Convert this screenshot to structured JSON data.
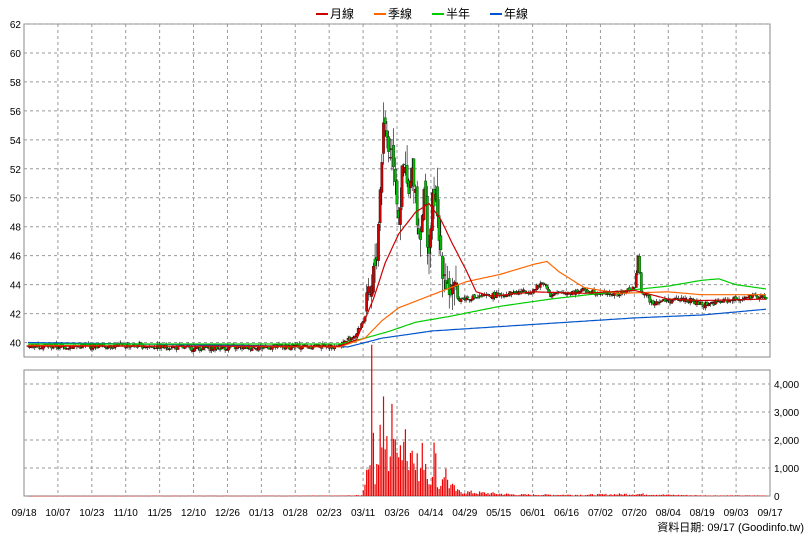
{
  "chart_data": {
    "type": "candlestick",
    "legend": [
      {
        "name": "月線",
        "color": "#cc0000"
      },
      {
        "name": "季線",
        "color": "#ff6600"
      },
      {
        "name": "半年",
        "color": "#00cc00"
      },
      {
        "name": "年線",
        "color": "#0055cc"
      }
    ],
    "x_ticks": [
      "09/18",
      "10/07",
      "10/23",
      "11/10",
      "11/25",
      "12/10",
      "12/26",
      "01/13",
      "01/28",
      "02/23",
      "03/11",
      "03/26",
      "04/14",
      "04/29",
      "05/15",
      "06/01",
      "06/16",
      "07/02",
      "07/20",
      "08/04",
      "08/19",
      "09/03",
      "09/17"
    ],
    "price_axis": {
      "min": 39,
      "max": 62,
      "ticks": [
        40,
        42,
        44,
        46,
        48,
        50,
        52,
        54,
        56,
        58,
        60,
        62
      ]
    },
    "volume_axis": {
      "min": 0,
      "max": 4500,
      "ticks": [
        "0",
        "1,000",
        "2,000",
        "3,000",
        "4,000"
      ],
      "tick_values": [
        0,
        1000,
        2000,
        3000,
        4000
      ]
    },
    "up_color": "#cc0000",
    "down_color": "#00bb00",
    "volume_color": "#ee0000",
    "grid": true,
    "grid_color": "#999999",
    "legend_position": "top-center",
    "price_key_points": [
      [
        0,
        39.8
      ],
      [
        20,
        39.7
      ],
      [
        60,
        39.8
      ],
      [
        100,
        39.6
      ],
      [
        150,
        39.7
      ],
      [
        185,
        39.8
      ],
      [
        195,
        40.6
      ],
      [
        200,
        41.8
      ],
      [
        204,
        43.5
      ],
      [
        207,
        46.5
      ],
      [
        209,
        50.5
      ],
      [
        211,
        55.6
      ],
      [
        214,
        53.5
      ],
      [
        217,
        53.0
      ],
      [
        220,
        49.0
      ],
      [
        223,
        52.0
      ],
      [
        226,
        50.0
      ],
      [
        229,
        52.0
      ],
      [
        232,
        47.5
      ],
      [
        235,
        50.0
      ],
      [
        238,
        46.5
      ],
      [
        241,
        50.5
      ],
      [
        244,
        47.0
      ],
      [
        247,
        45.0
      ],
      [
        250,
        43.8
      ],
      [
        253,
        43.0
      ],
      [
        265,
        43.1
      ],
      [
        280,
        43.3
      ],
      [
        300,
        43.6
      ],
      [
        306,
        44.2
      ],
      [
        310,
        43.3
      ],
      [
        330,
        43.6
      ],
      [
        350,
        43.3
      ],
      [
        360,
        43.8
      ],
      [
        362,
        45.8
      ],
      [
        364,
        43.6
      ],
      [
        370,
        42.8
      ],
      [
        390,
        43.0
      ],
      [
        400,
        42.6
      ],
      [
        420,
        43.0
      ],
      [
        436,
        43.2
      ],
      [
        438,
        42.9
      ]
    ],
    "ma_month_points": [
      [
        0,
        39.75
      ],
      [
        185,
        39.75
      ],
      [
        195,
        40.2
      ],
      [
        205,
        43.0
      ],
      [
        212,
        45.5
      ],
      [
        220,
        47.5
      ],
      [
        230,
        49.0
      ],
      [
        238,
        49.6
      ],
      [
        245,
        48.5
      ],
      [
        252,
        46.8
      ],
      [
        260,
        45.0
      ],
      [
        266,
        43.5
      ],
      [
        275,
        43.2
      ],
      [
        300,
        43.5
      ],
      [
        330,
        43.4
      ],
      [
        360,
        43.6
      ],
      [
        380,
        43.0
      ],
      [
        400,
        42.9
      ],
      [
        438,
        43.0
      ]
    ],
    "ma_quarter_points": [
      [
        0,
        39.8
      ],
      [
        185,
        39.7
      ],
      [
        200,
        40.3
      ],
      [
        210,
        41.5
      ],
      [
        220,
        42.4
      ],
      [
        240,
        43.3
      ],
      [
        260,
        44.2
      ],
      [
        280,
        44.7
      ],
      [
        300,
        45.4
      ],
      [
        308,
        45.6
      ],
      [
        315,
        44.9
      ],
      [
        330,
        43.8
      ],
      [
        350,
        43.4
      ],
      [
        380,
        43.5
      ],
      [
        400,
        43.3
      ],
      [
        438,
        43.3
      ]
    ],
    "ma_half_points": [
      [
        0,
        39.9
      ],
      [
        185,
        39.9
      ],
      [
        200,
        40.3
      ],
      [
        215,
        40.8
      ],
      [
        230,
        41.4
      ],
      [
        250,
        41.8
      ],
      [
        280,
        42.5
      ],
      [
        310,
        43.0
      ],
      [
        340,
        43.4
      ],
      [
        380,
        43.9
      ],
      [
        400,
        44.3
      ],
      [
        410,
        44.4
      ],
      [
        420,
        44.0
      ],
      [
        438,
        43.7
      ]
    ],
    "ma_year_points": [
      [
        0,
        40.0
      ],
      [
        190,
        39.7
      ],
      [
        210,
        40.3
      ],
      [
        240,
        40.8
      ],
      [
        280,
        41.1
      ],
      [
        320,
        41.4
      ],
      [
        360,
        41.7
      ],
      [
        400,
        41.9
      ],
      [
        438,
        42.3
      ]
    ],
    "volume_key_points": [
      [
        0,
        5
      ],
      [
        100,
        12
      ],
      [
        185,
        15
      ],
      [
        198,
        30
      ],
      [
        202,
        1500
      ],
      [
        204,
        4450
      ],
      [
        206,
        1100
      ],
      [
        209,
        2700
      ],
      [
        211,
        3500
      ],
      [
        214,
        1000
      ],
      [
        217,
        4000
      ],
      [
        220,
        1200
      ],
      [
        223,
        3900
      ],
      [
        226,
        1300
      ],
      [
        229,
        3100
      ],
      [
        232,
        700
      ],
      [
        235,
        2100
      ],
      [
        238,
        600
      ],
      [
        241,
        1900
      ],
      [
        244,
        300
      ],
      [
        247,
        1200
      ],
      [
        250,
        500
      ],
      [
        255,
        200
      ],
      [
        265,
        150
      ],
      [
        290,
        60
      ],
      [
        330,
        50
      ],
      [
        360,
        90
      ],
      [
        380,
        50
      ],
      [
        400,
        25
      ],
      [
        438,
        20
      ]
    ],
    "source_label": "資料日期: 09/17  (Goodinfo.tw)"
  }
}
